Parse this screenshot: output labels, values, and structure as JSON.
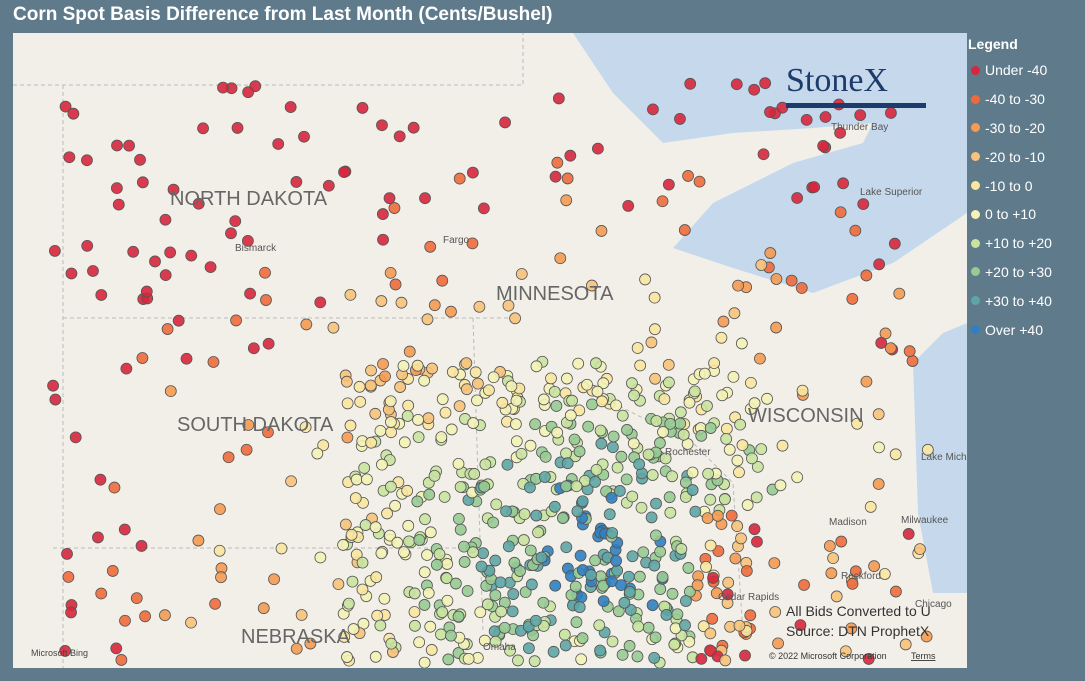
{
  "header": {
    "title": "Corn Spot Basis Difference from Last Month (Cents/Bushel)"
  },
  "legend": {
    "title": "Legend",
    "items": [
      {
        "label": "Under -40",
        "color": "#d7263d"
      },
      {
        "label": "-40 to -30",
        "color": "#ee6a3b"
      },
      {
        "label": "-30 to -20",
        "color": "#f49a52"
      },
      {
        "label": "-20 to -10",
        "color": "#f7c27a"
      },
      {
        "label": "-10 to 0",
        "color": "#f9e6a0"
      },
      {
        "label": "0 to +10",
        "color": "#f4f2b6"
      },
      {
        "label": "+10 to +20",
        "color": "#c9e3a0"
      },
      {
        "label": "+20 to +30",
        "color": "#97cb93"
      },
      {
        "label": "+30 to +40",
        "color": "#5ea6a6"
      },
      {
        "label": "Over +40",
        "color": "#2f7fc1"
      }
    ]
  },
  "logo": "StoneX",
  "map_labels": {
    "states": [
      "NORTH DAKOTA",
      "SOUTH DAKOTA",
      "MINNESOTA",
      "WISCONSIN",
      "NEBRASKA"
    ],
    "places": [
      "Bismarck",
      "Fargo",
      "Thunder Bay",
      "Lake Superior",
      "Lake Michigan",
      "Rochester",
      "Madison",
      "Milwaukee",
      "Rockford",
      "Cedar Rapids",
      "Chicago",
      "Omaha"
    ]
  },
  "footer": {
    "note": "All Bids Converted to U",
    "source": "Source: DTN ProphetX",
    "copyright": "© 2022 Microsoft Corporation",
    "terms": "Terms",
    "provider": "Microsoft Bing"
  }
}
